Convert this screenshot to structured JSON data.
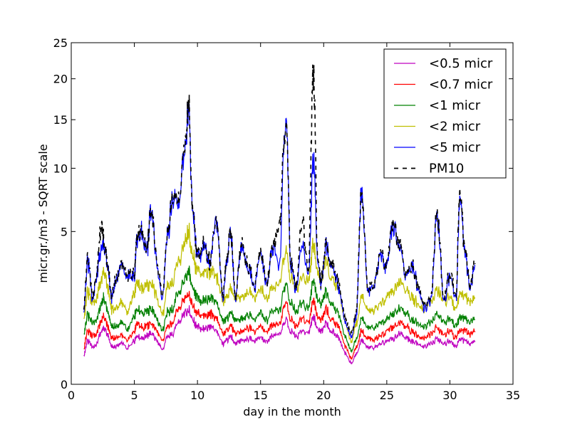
{
  "chart_data": {
    "type": "line",
    "title": "",
    "xlabel": "day in the month",
    "ylabel": "micr.gr./m3 - SQRT scale",
    "y_scale": "sqrt",
    "xlim": [
      0,
      35
    ],
    "ylim": [
      0,
      25
    ],
    "xticks": [
      0,
      5,
      10,
      15,
      20,
      25,
      30,
      35
    ],
    "yticks": [
      0,
      5,
      10,
      15,
      20,
      25
    ],
    "grid": false,
    "legend_position": "top-right",
    "x_keypoints": [
      1.0,
      1.3,
      1.7,
      2.0,
      2.4,
      2.6,
      2.9,
      3.2,
      3.5,
      4.0,
      4.5,
      5.0,
      5.2,
      5.6,
      6.0,
      6.3,
      6.8,
      7.2,
      7.7,
      8.0,
      8.5,
      9.0,
      9.3,
      9.6,
      10.0,
      10.5,
      11.0,
      11.5,
      12.0,
      12.3,
      12.6,
      13.0,
      13.5,
      14.0,
      14.5,
      15.0,
      15.5,
      16.0,
      16.5,
      17.0,
      17.4,
      17.8,
      18.3,
      18.8,
      19.2,
      19.5,
      19.8,
      20.2,
      20.7,
      21.2,
      21.7,
      22.2,
      22.6,
      23.0,
      23.5,
      24.0,
      24.5,
      25.0,
      25.5,
      26.0,
      26.5,
      27.0,
      27.5,
      28.0,
      28.5,
      29.0,
      29.5,
      30.0,
      30.5,
      30.8,
      31.2,
      31.6,
      32.0
    ],
    "series": [
      {
        "name": "<0.5 micr",
        "color": "#bf00bf",
        "dash": "solid",
        "values": [
          0.2,
          0.4,
          0.3,
          0.35,
          0.6,
          0.7,
          0.5,
          0.3,
          0.3,
          0.35,
          0.3,
          0.4,
          0.5,
          0.45,
          0.5,
          0.55,
          0.4,
          0.25,
          0.5,
          0.55,
          0.8,
          1.1,
          1.2,
          0.9,
          0.7,
          0.65,
          0.7,
          0.6,
          0.35,
          0.4,
          0.5,
          0.35,
          0.4,
          0.45,
          0.4,
          0.45,
          0.4,
          0.5,
          0.55,
          0.9,
          0.6,
          0.5,
          0.6,
          0.55,
          1.0,
          0.7,
          0.6,
          0.8,
          0.6,
          0.45,
          0.2,
          0.1,
          0.2,
          0.4,
          0.3,
          0.3,
          0.35,
          0.4,
          0.45,
          0.55,
          0.45,
          0.4,
          0.35,
          0.3,
          0.35,
          0.45,
          0.35,
          0.4,
          0.3,
          0.45,
          0.4,
          0.35,
          0.4
        ]
      },
      {
        "name": "<0.7 micr",
        "color": "#ff0000",
        "dash": "solid",
        "values": [
          0.3,
          0.6,
          0.5,
          0.55,
          0.9,
          1.0,
          0.7,
          0.45,
          0.45,
          0.5,
          0.45,
          0.6,
          0.8,
          0.7,
          0.75,
          0.8,
          0.6,
          0.4,
          0.75,
          0.8,
          1.2,
          1.6,
          1.8,
          1.35,
          1.05,
          1.0,
          1.05,
          0.9,
          0.55,
          0.6,
          0.75,
          0.55,
          0.6,
          0.7,
          0.6,
          0.7,
          0.6,
          0.75,
          0.8,
          1.4,
          0.9,
          0.75,
          0.9,
          0.8,
          1.55,
          1.05,
          0.9,
          1.2,
          0.9,
          0.7,
          0.3,
          0.15,
          0.3,
          0.6,
          0.45,
          0.45,
          0.5,
          0.6,
          0.7,
          0.8,
          0.7,
          0.6,
          0.5,
          0.45,
          0.55,
          0.7,
          0.55,
          0.6,
          0.45,
          0.65,
          0.6,
          0.55,
          0.6
        ]
      },
      {
        "name": "<1 micr",
        "color": "#008000",
        "dash": "solid",
        "values": [
          0.6,
          1.0,
          0.8,
          0.9,
          1.4,
          1.6,
          1.1,
          0.7,
          0.7,
          0.8,
          0.7,
          1.0,
          1.2,
          1.1,
          1.15,
          1.2,
          0.9,
          0.6,
          1.15,
          1.2,
          1.8,
          2.4,
          2.8,
          2.0,
          1.6,
          1.5,
          1.6,
          1.4,
          0.85,
          0.9,
          1.15,
          0.85,
          0.9,
          1.05,
          0.9,
          1.05,
          0.9,
          1.15,
          1.2,
          2.2,
          1.4,
          1.15,
          1.4,
          1.2,
          2.4,
          1.6,
          1.4,
          1.8,
          1.4,
          1.05,
          0.45,
          0.25,
          0.45,
          0.9,
          0.7,
          0.7,
          0.8,
          0.9,
          1.05,
          1.2,
          1.05,
          0.9,
          0.8,
          0.7,
          0.85,
          1.05,
          0.85,
          0.9,
          0.7,
          1.0,
          0.9,
          0.85,
          0.9
        ]
      },
      {
        "name": "<2 micr",
        "color": "#bfbf00",
        "dash": "solid",
        "values": [
          1.0,
          1.8,
          1.4,
          1.6,
          2.4,
          2.8,
          1.9,
          1.2,
          1.2,
          1.4,
          1.2,
          1.8,
          2.2,
          2.0,
          2.1,
          2.2,
          1.6,
          1.0,
          2.1,
          2.2,
          3.2,
          4.4,
          5.0,
          3.6,
          2.8,
          2.6,
          2.8,
          2.4,
          1.5,
          1.6,
          2.0,
          1.5,
          1.6,
          1.9,
          1.6,
          1.9,
          1.6,
          2.0,
          2.2,
          3.8,
          2.4,
          2.0,
          2.4,
          2.2,
          4.3,
          2.8,
          2.4,
          3.2,
          2.4,
          1.9,
          0.8,
          0.4,
          0.8,
          1.6,
          1.2,
          1.2,
          1.4,
          1.6,
          1.9,
          2.2,
          1.9,
          1.6,
          1.4,
          1.2,
          1.5,
          1.9,
          1.5,
          1.6,
          1.2,
          1.8,
          1.6,
          1.5,
          1.6
        ]
      },
      {
        "name": "<5 micr",
        "color": "#0000ff",
        "dash": "solid",
        "values": [
          1.2,
          3.2,
          1.5,
          2.5,
          4.0,
          4.2,
          2.8,
          1.6,
          2.2,
          3.0,
          2.6,
          2.5,
          4.5,
          5.0,
          3.8,
          6.5,
          3.0,
          1.5,
          5.0,
          7.5,
          7.0,
          12.0,
          16.5,
          6.5,
          3.5,
          4.0,
          3.2,
          5.5,
          1.5,
          3.0,
          5.0,
          1.5,
          4.0,
          3.0,
          2.0,
          3.5,
          2.2,
          4.0,
          3.0,
          14.5,
          3.0,
          2.0,
          4.0,
          2.5,
          11.0,
          3.5,
          2.2,
          4.0,
          3.0,
          2.0,
          0.8,
          0.5,
          1.0,
          7.5,
          1.8,
          2.2,
          3.5,
          3.0,
          5.5,
          4.0,
          2.5,
          3.0,
          2.0,
          1.2,
          1.5,
          6.0,
          1.5,
          2.5,
          1.5,
          7.5,
          3.5,
          2.0,
          3.0
        ]
      },
      {
        "name": "PM10",
        "color": "#000000",
        "dash": "dashed",
        "values": [
          1.3,
          3.3,
          1.6,
          2.6,
          5.5,
          4.3,
          2.9,
          1.7,
          2.3,
          3.1,
          2.7,
          2.6,
          4.6,
          5.1,
          3.9,
          6.6,
          3.1,
          1.6,
          5.1,
          7.6,
          7.1,
          12.2,
          17.0,
          6.6,
          3.6,
          4.1,
          3.3,
          5.6,
          1.6,
          3.1,
          5.1,
          1.6,
          4.1,
          3.1,
          2.1,
          3.6,
          2.3,
          4.1,
          5.5,
          14.7,
          3.1,
          2.1,
          5.5,
          2.6,
          21.5,
          3.6,
          2.3,
          4.1,
          3.1,
          2.1,
          0.9,
          0.6,
          1.1,
          7.6,
          1.9,
          2.3,
          3.6,
          3.1,
          5.6,
          4.1,
          2.6,
          3.1,
          2.1,
          1.3,
          1.6,
          6.1,
          1.6,
          2.6,
          1.6,
          8.1,
          3.6,
          2.1,
          3.1
        ]
      }
    ]
  }
}
